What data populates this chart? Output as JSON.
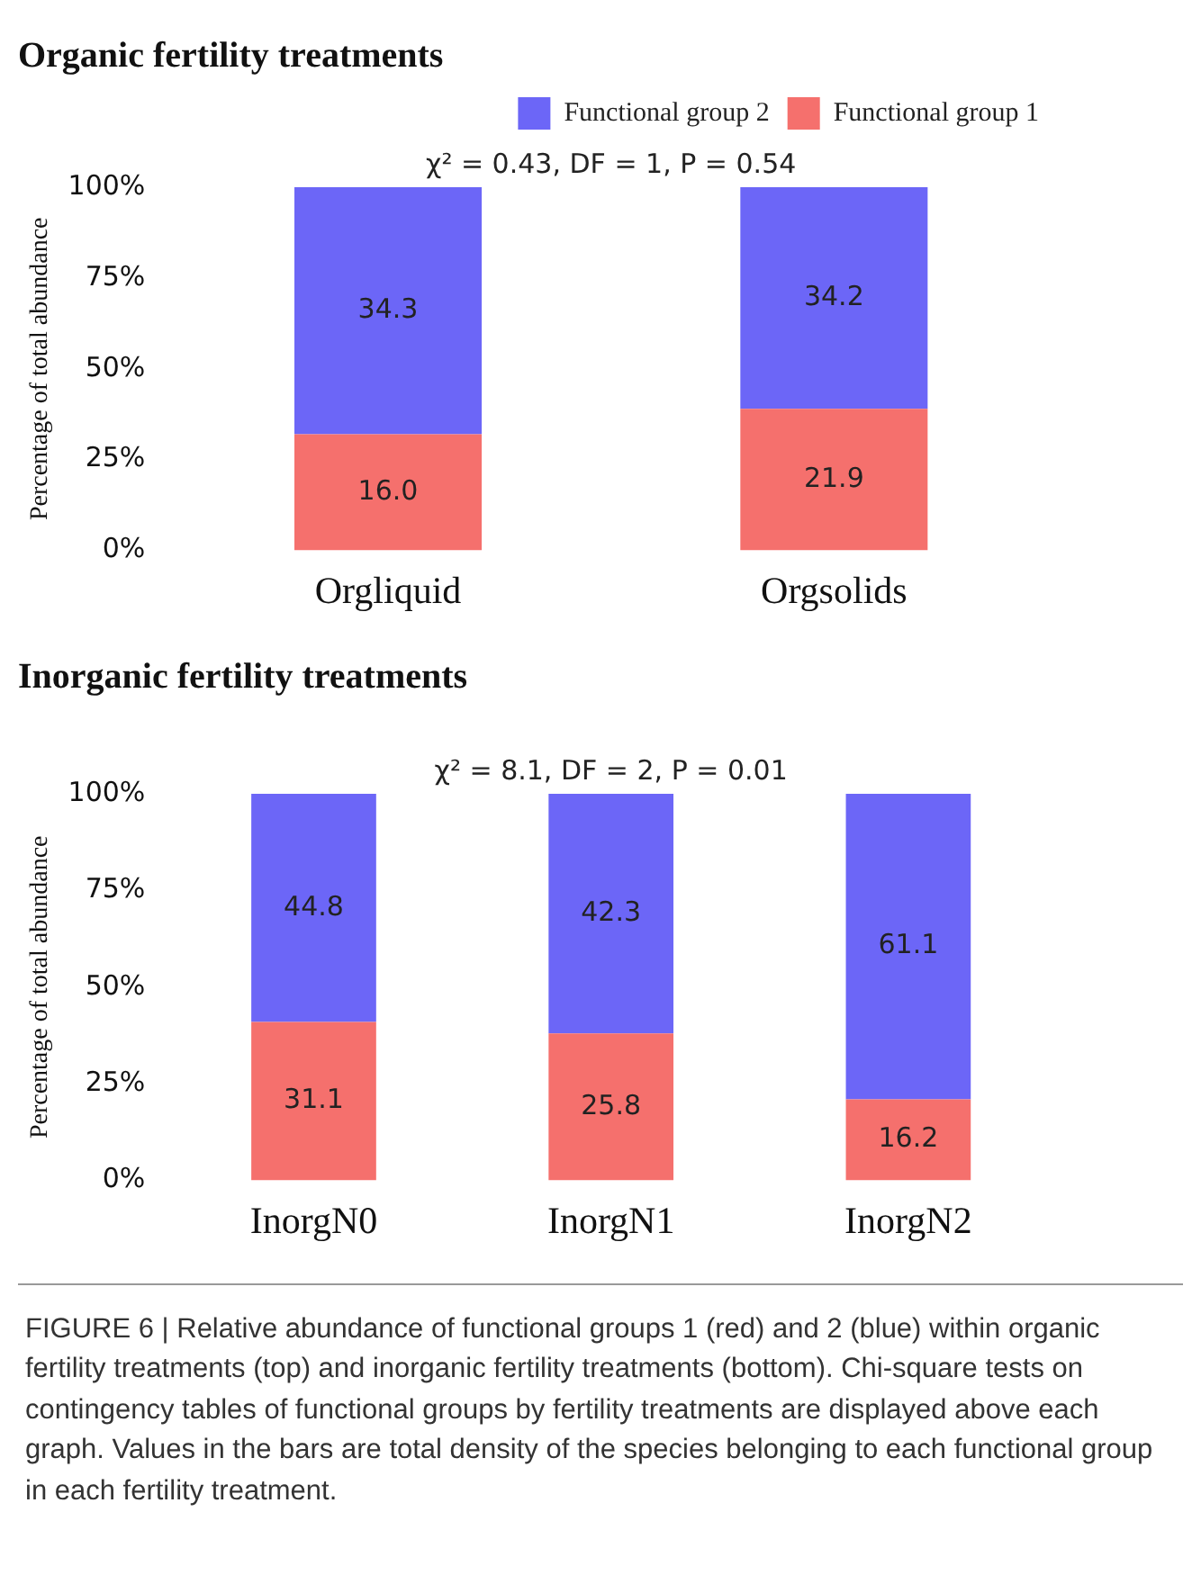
{
  "chart_data": [
    {
      "type": "bar",
      "stacked": true,
      "title": "Organic fertility treatments",
      "ylabel": "Percentage of total abundance",
      "categories": [
        "Orgliquid",
        "Orgsolids"
      ],
      "series": [
        {
          "name": "Functional group 1",
          "color": "#f5706d",
          "values": [
            32,
            39
          ]
        },
        {
          "name": "Functional group 2",
          "color": "#6c66f7",
          "values": [
            68,
            61
          ]
        }
      ],
      "ylim": [
        0,
        100
      ],
      "yticks": [
        {
          "value": 0,
          "label": "0%"
        },
        {
          "value": 25,
          "label": "25%"
        },
        {
          "value": 50,
          "label": "50%"
        },
        {
          "value": 75,
          "label": "75%"
        },
        {
          "value": 100,
          "label": "100%"
        }
      ],
      "legend": "top right",
      "annotations": [
        "χ² = 0.43, DF = 1, P = 0.54",
        "16.0",
        "21.9",
        "34.3",
        "34.2"
      ]
    },
    {
      "type": "bar",
      "stacked": true,
      "title": "Inorganic fertility treatments",
      "ylabel": "Percentage of total abundance",
      "categories": [
        "InorgN0",
        "InorgN1",
        "InorgN2"
      ],
      "series": [
        {
          "color": "#f5706d",
          "values": [
            41,
            38,
            21
          ]
        },
        {
          "color": "#6c66f7",
          "values": [
            59,
            62,
            79
          ]
        }
      ],
      "ylim": [
        0,
        100
      ],
      "yticks": [
        {
          "value": 0,
          "label": "0%"
        },
        {
          "value": 25,
          "label": "25%"
        },
        {
          "value": 50,
          "label": "50%"
        },
        {
          "value": 75,
          "label": "75%"
        },
        {
          "value": 100,
          "label": "100%"
        }
      ],
      "legend": false,
      "annotations": [
        "χ² = 8.1, DF = 2, P = 0.01",
        "31.1",
        "25.8",
        "16.2",
        "44.8",
        "42.3",
        "61.1",
        "FIGURE 6 | Relative abundance of functional groups 1 (red) and 2 (blue) within organic fertility treatments (top) and inorganic fertility treatments (bottom). Chi-square tests on contingency tables of functional groups by fertility treatments are displayed above each graph. Values in the bars are total density of the species belonging to each functional group in each fertility treatment."
      ]
    }
  ]
}
